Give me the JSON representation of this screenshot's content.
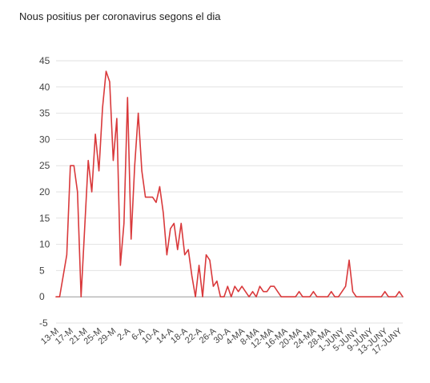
{
  "chart_data": {
    "type": "line",
    "title": "Nous positius per coronavirus segons el dia",
    "xlabel": "",
    "ylabel": "",
    "ylim": [
      -5,
      45
    ],
    "yticks": [
      45,
      40,
      35,
      30,
      25,
      20,
      15,
      10,
      5,
      0,
      -5
    ],
    "grid": true,
    "legend": "none",
    "x_tick_labels": [
      "13-M",
      "17-M",
      "21-M",
      "25-M",
      "29-M",
      "2-A",
      "6-A",
      "10-A",
      "14-A",
      "18-A",
      "22-A",
      "26-A",
      "30-A",
      "4-MA",
      "8-MA",
      "12-MA",
      "16-MA",
      "20-MA",
      "24-MA",
      "28-MA",
      "1-JUNY",
      "5-JUNY",
      "9-JUNY",
      "13-JUNY",
      "17-JUNY"
    ],
    "tick_every": 4,
    "color": "#d9393b",
    "series": [
      {
        "values": [
          0,
          0,
          4,
          8,
          25,
          25,
          20,
          0,
          13,
          26,
          20,
          31,
          24,
          36,
          43,
          41,
          26,
          34,
          6,
          14,
          38,
          11,
          25,
          35,
          24,
          19,
          19,
          19,
          18,
          21,
          16,
          8,
          13,
          14,
          9,
          14,
          8,
          9,
          4,
          0,
          6,
          0,
          8,
          7,
          2,
          3,
          0,
          0,
          2,
          0,
          2,
          1,
          2,
          1,
          0,
          1,
          0,
          2,
          1,
          1,
          2,
          2,
          1,
          0,
          0,
          0,
          0,
          0,
          1,
          0,
          0,
          0,
          1,
          0,
          0,
          0,
          0,
          1,
          0,
          0,
          1,
          2,
          7,
          1,
          0,
          0,
          0,
          0,
          0,
          0,
          0,
          0,
          1,
          0,
          0,
          0,
          1,
          0
        ]
      }
    ]
  }
}
